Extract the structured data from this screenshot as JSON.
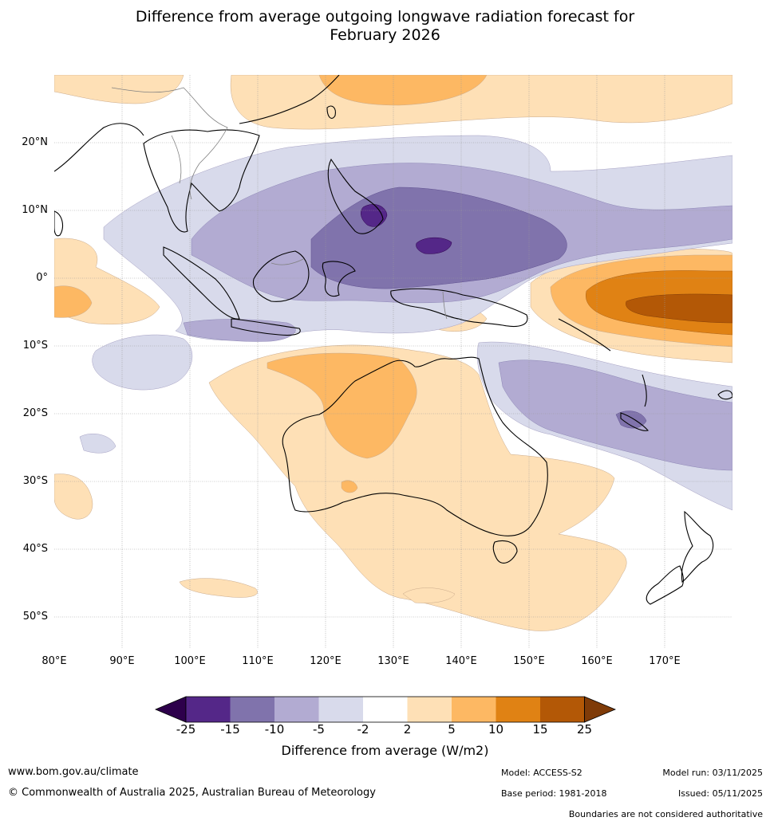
{
  "title": {
    "line1": "Difference from average outgoing longwave radiation forecast for",
    "line2": "February 2026"
  },
  "map": {
    "lat_labels": [
      "20°N",
      "10°N",
      "0°",
      "10°S",
      "20°S",
      "30°S",
      "40°S",
      "50°S"
    ],
    "lon_labels": [
      "80°E",
      "90°E",
      "100°E",
      "110°E",
      "120°E",
      "130°E",
      "140°E",
      "150°E",
      "160°E",
      "170°E"
    ],
    "lat_range": [
      -55,
      30
    ],
    "lon_range": [
      80,
      180
    ],
    "coastline_color": "#000000",
    "border_color": "#808080",
    "grid_color": "#999999"
  },
  "colorbar": {
    "ticks": [
      "-25",
      "-15",
      "-10",
      "-5",
      "-2",
      "2",
      "5",
      "10",
      "15",
      "25"
    ],
    "colors": [
      "#2d004b",
      "#542788",
      "#8073ac",
      "#b2abd2",
      "#d8daeb",
      "#ffffff",
      "#fee0b6",
      "#fdb863",
      "#e08214",
      "#b35806",
      "#7f3b08"
    ],
    "label": "Difference from average (W/m2)"
  },
  "footer": {
    "website": "www.bom.gov.au/climate",
    "copyright": "© Commonwealth of Australia 2025, Australian Bureau of Meteorology",
    "model": "Model: ACCESS-S2",
    "base_period": "Base period: 1981-2018",
    "model_run": "Model run: 03/11/2025",
    "issued": "Issued: 05/11/2025",
    "disclaimer": "Boundaries are not considered authoritative"
  }
}
